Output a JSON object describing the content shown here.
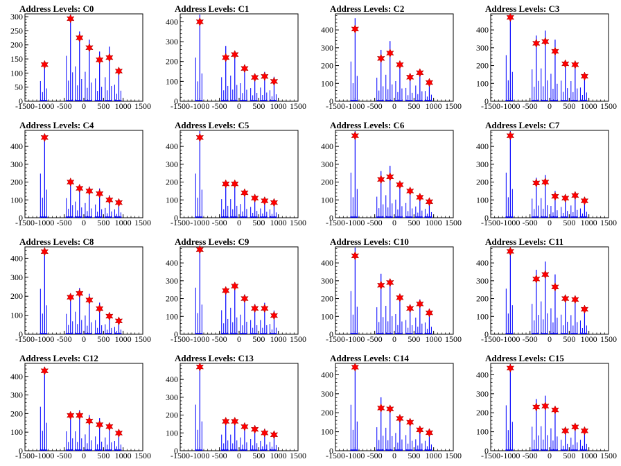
{
  "charts": [
    {
      "title": "Address Levels: C0",
      "y_ticks": [
        "0",
        "50",
        "100",
        "150",
        "200",
        "250",
        "300"
      ],
      "x_ticks": [
        "-1500",
        "-1000",
        "-500",
        "0",
        "500",
        "1000",
        "1500"
      ],
      "ylim": [
        0,
        310
      ],
      "xlim": [
        -1500,
        1500
      ],
      "peaks_x": [
        -1000,
        -340,
        -110,
        140,
        400,
        650,
        890
      ],
      "peaks_y": [
        130,
        293,
        225,
        190,
        147,
        155,
        107
      ]
    },
    {
      "title": "Address Levels: C1",
      "y_ticks": [
        "0",
        "100",
        "200",
        "300",
        "400"
      ],
      "x_ticks": [
        "-1500",
        "-1000",
        "-500",
        "0",
        "500",
        "1000",
        "1500"
      ],
      "ylim": [
        0,
        440
      ],
      "xlim": [
        -1500,
        1500
      ],
      "peaks_x": [
        -1000,
        -340,
        -110,
        140,
        400,
        650,
        890
      ],
      "peaks_y": [
        400,
        220,
        235,
        165,
        120,
        125,
        100
      ]
    },
    {
      "title": "Address Levels: C2",
      "y_ticks": [
        "0",
        "100",
        "200",
        "300",
        "400"
      ],
      "x_ticks": [
        "-1500",
        "-1000",
        "-500",
        "0",
        "500",
        "1000",
        "1500"
      ],
      "ylim": [
        0,
        490
      ],
      "xlim": [
        -1500,
        1500
      ],
      "peaks_x": [
        -1000,
        -340,
        -110,
        140,
        400,
        650,
        890
      ],
      "peaks_y": [
        405,
        240,
        270,
        205,
        135,
        160,
        105
      ]
    },
    {
      "title": "Address Levels: C3",
      "y_ticks": [
        "0",
        "100",
        "200",
        "300",
        "400"
      ],
      "x_ticks": [
        "-1500",
        "-1000",
        "-500",
        "0",
        "500",
        "1000",
        "1500"
      ],
      "ylim": [
        0,
        490
      ],
      "xlim": [
        -1500,
        1500
      ],
      "peaks_x": [
        -1000,
        -340,
        -110,
        140,
        400,
        650,
        890
      ],
      "peaks_y": [
        470,
        325,
        335,
        280,
        210,
        205,
        140
      ]
    },
    {
      "title": "Address Levels: C4",
      "y_ticks": [
        "0",
        "100",
        "200",
        "300",
        "400"
      ],
      "x_ticks": [
        "-1500",
        "-1000",
        "-500",
        "0",
        "500",
        "1000",
        "1500"
      ],
      "ylim": [
        0,
        490
      ],
      "xlim": [
        -1500,
        1500
      ],
      "peaks_x": [
        -1000,
        -340,
        -110,
        140,
        400,
        650,
        890
      ],
      "peaks_y": [
        450,
        200,
        165,
        150,
        135,
        100,
        85
      ]
    },
    {
      "title": "Address Levels: C5",
      "y_ticks": [
        "0",
        "100",
        "200",
        "300",
        "400"
      ],
      "x_ticks": [
        "-1500",
        "-1000",
        "-500",
        "0",
        "500",
        "1000",
        "1500"
      ],
      "ylim": [
        0,
        490
      ],
      "xlim": [
        -1500,
        1500
      ],
      "peaks_x": [
        -1000,
        -340,
        -110,
        140,
        400,
        650,
        890
      ],
      "peaks_y": [
        450,
        190,
        190,
        140,
        110,
        95,
        85
      ]
    },
    {
      "title": "Address Levels: C6",
      "y_ticks": [
        "0",
        "100",
        "200",
        "300",
        "400"
      ],
      "x_ticks": [
        "-1500",
        "-1000",
        "-500",
        "0",
        "500",
        "1000",
        "1500"
      ],
      "ylim": [
        0,
        490
      ],
      "xlim": [
        -1500,
        1500
      ],
      "peaks_x": [
        -1000,
        -340,
        -110,
        140,
        400,
        650,
        890
      ],
      "peaks_y": [
        460,
        215,
        230,
        185,
        150,
        115,
        90
      ]
    },
    {
      "title": "Address Levels: C7",
      "y_ticks": [
        "0",
        "100",
        "200",
        "300",
        "400"
      ],
      "x_ticks": [
        "-1500",
        "-1000",
        "-500",
        "0",
        "500",
        "1000",
        "1500"
      ],
      "ylim": [
        0,
        490
      ],
      "xlim": [
        -1500,
        1500
      ],
      "peaks_x": [
        -1000,
        -340,
        -110,
        140,
        400,
        650,
        890
      ],
      "peaks_y": [
        460,
        195,
        200,
        120,
        110,
        125,
        95
      ]
    },
    {
      "title": "Address Levels: C8",
      "y_ticks": [
        "0",
        "100",
        "200",
        "300",
        "400"
      ],
      "x_ticks": [
        "-1500",
        "-1000",
        "-500",
        "0",
        "500",
        "1000",
        "1500"
      ],
      "ylim": [
        0,
        460
      ],
      "xlim": [
        -1500,
        1500
      ],
      "peaks_x": [
        -1000,
        -340,
        -110,
        140,
        400,
        650,
        890
      ],
      "peaks_y": [
        435,
        195,
        215,
        180,
        135,
        95,
        70
      ]
    },
    {
      "title": "Address Levels: C9",
      "y_ticks": [
        "0",
        "100",
        "200",
        "300",
        "400"
      ],
      "x_ticks": [
        "-1500",
        "-1000",
        "-500",
        "0",
        "500",
        "1000",
        "1500"
      ],
      "ylim": [
        0,
        490
      ],
      "xlim": [
        -1500,
        1500
      ],
      "peaks_x": [
        -1000,
        -340,
        -110,
        140,
        400,
        650,
        890
      ],
      "peaks_y": [
        475,
        245,
        270,
        200,
        145,
        145,
        105
      ]
    },
    {
      "title": "Address Levels: C10",
      "y_ticks": [
        "0",
        "100",
        "200",
        "300",
        "400"
      ],
      "x_ticks": [
        "-1500",
        "-1000",
        "-500",
        "0",
        "500",
        "1000",
        "1500"
      ],
      "ylim": [
        0,
        490
      ],
      "xlim": [
        -1500,
        1500
      ],
      "peaks_x": [
        -1000,
        -340,
        -110,
        140,
        400,
        650,
        890
      ],
      "peaks_y": [
        440,
        275,
        290,
        205,
        145,
        170,
        120
      ]
    },
    {
      "title": "Address Levels: C11",
      "y_ticks": [
        "0",
        "100",
        "200",
        "300",
        "400"
      ],
      "x_ticks": [
        "-1500",
        "-1000",
        "-500",
        "0",
        "500",
        "1000",
        "1500"
      ],
      "ylim": [
        0,
        490
      ],
      "xlim": [
        -1500,
        1500
      ],
      "peaks_x": [
        -1000,
        -340,
        -110,
        140,
        400,
        650,
        890
      ],
      "peaks_y": [
        465,
        310,
        335,
        265,
        200,
        195,
        140
      ]
    },
    {
      "title": "Address Levels: C12",
      "y_ticks": [
        "0",
        "100",
        "200",
        "300",
        "400"
      ],
      "x_ticks": [
        "-1500",
        "-1000",
        "-500",
        "0",
        "500",
        "1000",
        "1500"
      ],
      "ylim": [
        0,
        470
      ],
      "xlim": [
        -1500,
        1500
      ],
      "peaks_x": [
        -1000,
        -340,
        -110,
        140,
        400,
        650,
        890
      ],
      "peaks_y": [
        430,
        190,
        190,
        160,
        140,
        130,
        95
      ]
    },
    {
      "title": "Address Levels: C13",
      "y_ticks": [
        "0",
        "100",
        "200",
        "300",
        "400"
      ],
      "x_ticks": [
        "-1500",
        "-1000",
        "-500",
        "0",
        "500",
        "1000",
        "1500"
      ],
      "ylim": [
        0,
        490
      ],
      "xlim": [
        -1500,
        1500
      ],
      "peaks_x": [
        -1000,
        -340,
        -110,
        140,
        400,
        650,
        890
      ],
      "peaks_y": [
        470,
        165,
        165,
        135,
        120,
        100,
        90
      ]
    },
    {
      "title": "Address Levels: C14",
      "y_ticks": [
        "0",
        "100",
        "200",
        "300",
        "400"
      ],
      "x_ticks": [
        "-1500",
        "-1000",
        "-500",
        "0",
        "500",
        "1000",
        "1500"
      ],
      "ylim": [
        0,
        460
      ],
      "xlim": [
        -1500,
        1500
      ],
      "peaks_x": [
        -1000,
        -340,
        -110,
        140,
        400,
        650,
        890
      ],
      "peaks_y": [
        440,
        225,
        220,
        170,
        150,
        110,
        95
      ]
    },
    {
      "title": "Address Levels: C15",
      "y_ticks": [
        "0",
        "100",
        "200",
        "300",
        "400"
      ],
      "x_ticks": [
        "-1500",
        "-1000",
        "-500",
        "0",
        "500",
        "1000",
        "1500"
      ],
      "ylim": [
        0,
        460
      ],
      "xlim": [
        -1500,
        1500
      ],
      "peaks_x": [
        -1000,
        -340,
        -110,
        140,
        400,
        650,
        890
      ],
      "peaks_y": [
        435,
        230,
        235,
        215,
        105,
        125,
        105
      ]
    }
  ],
  "chart_data": {
    "type": "bar",
    "note_series": "blue histogram bars with red star markers at peak maxima",
    "colors": {
      "bars": "#0000ff",
      "markers": "#ff0000",
      "axis": "#000000"
    },
    "grid": false
  }
}
